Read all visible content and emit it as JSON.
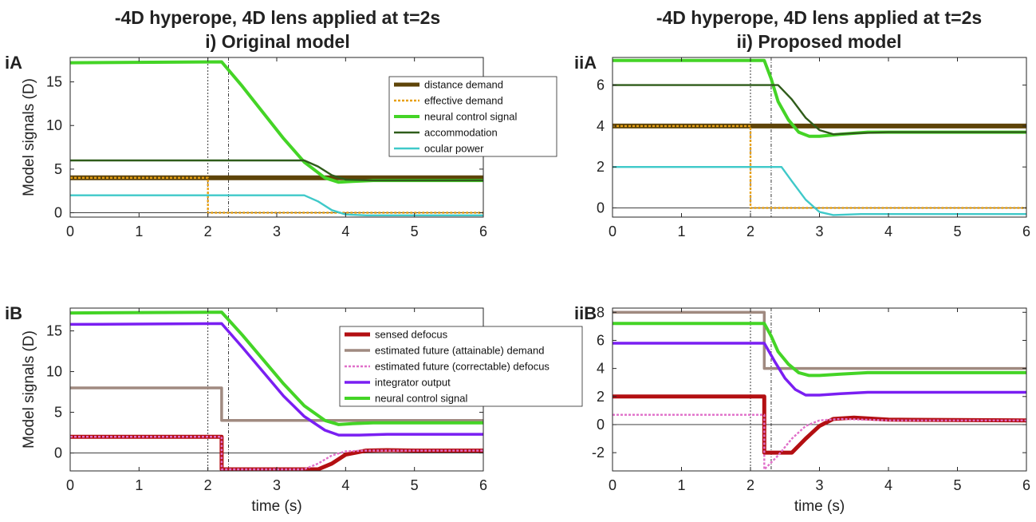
{
  "titles": {
    "left_line1": "-4D hyperope, 4D lens applied at t=2s",
    "left_line2": "i) Original model",
    "right_line1": "-4D hyperope, 4D lens applied at t=2s",
    "right_line2": "ii) Proposed model"
  },
  "chart_data": [
    {
      "id": "iA",
      "type": "line",
      "panel_label": "iA",
      "xlabel": "",
      "ylabel": "Model signals (D)",
      "xlim": [
        0,
        6
      ],
      "ylim": [
        -0.5,
        17.8
      ],
      "xticks": [
        0,
        1,
        2,
        3,
        4,
        5,
        6
      ],
      "yticks": [
        0,
        5,
        10,
        15
      ],
      "vlines": [
        2,
        2.3
      ],
      "legend_position": "top-right",
      "series": [
        {
          "name": "distance demand",
          "color": "#5e4408",
          "width": 6,
          "dash": "",
          "x": [
            0,
            6
          ],
          "y": [
            4,
            4
          ]
        },
        {
          "name": "effective demand",
          "color": "#e8a013",
          "width": 2.4,
          "dash": "3,2",
          "x": [
            0,
            2,
            2,
            6
          ],
          "y": [
            4,
            4,
            0,
            0
          ]
        },
        {
          "name": "neural control signal",
          "color": "#44d426",
          "width": 4,
          "dash": "",
          "x": [
            0,
            2.2,
            2.5,
            2.8,
            3.1,
            3.4,
            3.7,
            3.9,
            4.1,
            4.4,
            5,
            6
          ],
          "y": [
            17.2,
            17.3,
            14.5,
            11.5,
            8.5,
            5.8,
            4.0,
            3.5,
            3.6,
            3.7,
            3.7,
            3.7
          ]
        },
        {
          "name": "accommodation",
          "color": "#2f5c1a",
          "width": 2.4,
          "dash": "",
          "x": [
            0,
            3.4,
            3.6,
            3.8,
            4.0,
            4.4,
            5,
            6
          ],
          "y": [
            6,
            6,
            5.3,
            4.3,
            3.8,
            3.7,
            3.7,
            3.7
          ]
        },
        {
          "name": "ocular power",
          "color": "#3fc9c9",
          "width": 2.4,
          "dash": "",
          "x": [
            0,
            3.4,
            3.6,
            3.8,
            4.0,
            4.3,
            5,
            6
          ],
          "y": [
            2,
            2,
            1.3,
            0.3,
            -0.2,
            -0.3,
            -0.3,
            -0.3
          ]
        }
      ]
    },
    {
      "id": "iiA",
      "type": "line",
      "panel_label": "iiA",
      "xlabel": "",
      "ylabel": "",
      "xlim": [
        0,
        6
      ],
      "ylim": [
        -0.45,
        7.35
      ],
      "xticks": [
        0,
        1,
        2,
        3,
        4,
        5,
        6
      ],
      "yticks": [
        0,
        2,
        4,
        6
      ],
      "vlines": [
        2,
        2.3
      ],
      "legend_position": "none",
      "series": [
        {
          "name": "distance demand",
          "color": "#5e4408",
          "width": 6,
          "dash": "",
          "x": [
            0,
            6
          ],
          "y": [
            4,
            4
          ]
        },
        {
          "name": "effective demand",
          "color": "#e8a013",
          "width": 2.4,
          "dash": "3,2",
          "x": [
            0,
            2,
            2,
            6
          ],
          "y": [
            4,
            4,
            0,
            0
          ]
        },
        {
          "name": "neural control signal",
          "color": "#44d426",
          "width": 4,
          "dash": "",
          "x": [
            0,
            2.2,
            2.3,
            2.4,
            2.55,
            2.7,
            2.85,
            3.0,
            3.3,
            3.7,
            4,
            6
          ],
          "y": [
            7.2,
            7.2,
            6.3,
            5.2,
            4.3,
            3.7,
            3.5,
            3.5,
            3.6,
            3.7,
            3.7,
            3.7
          ]
        },
        {
          "name": "accommodation",
          "color": "#2f5c1a",
          "width": 2.4,
          "dash": "",
          "x": [
            0,
            2.4,
            2.6,
            2.8,
            3.0,
            3.2,
            3.5,
            4,
            6
          ],
          "y": [
            6,
            6,
            5.3,
            4.4,
            3.8,
            3.6,
            3.65,
            3.7,
            3.7
          ]
        },
        {
          "name": "ocular power",
          "color": "#3fc9c9",
          "width": 2.4,
          "dash": "",
          "x": [
            0,
            2.45,
            2.6,
            2.8,
            3.0,
            3.2,
            3.6,
            4,
            6
          ],
          "y": [
            2,
            2,
            1.3,
            0.4,
            -0.2,
            -0.35,
            -0.3,
            -0.3,
            -0.3
          ]
        }
      ]
    },
    {
      "id": "iB",
      "type": "line",
      "panel_label": "iB",
      "xlabel": "time (s)",
      "ylabel": "Model signals (D)",
      "xlim": [
        0,
        6
      ],
      "ylim": [
        -2.2,
        17.8
      ],
      "xticks": [
        0,
        1,
        2,
        3,
        4,
        5,
        6
      ],
      "yticks": [
        0,
        5,
        10,
        15
      ],
      "vlines": [
        2,
        2.3
      ],
      "legend_position": "top-right",
      "series": [
        {
          "name": "sensed defocus",
          "color": "#b30f12",
          "width": 5,
          "dash": "",
          "x": [
            0,
            2.2,
            2.2,
            3.6,
            3.8,
            4.0,
            4.3,
            4.6,
            5,
            6
          ],
          "y": [
            2,
            2,
            -2,
            -2,
            -1.3,
            -0.2,
            0.3,
            0.35,
            0.3,
            0.3
          ]
        },
        {
          "name": "estimated future (attainable) demand",
          "color": "#a08a80",
          "width": 3.5,
          "dash": "",
          "x": [
            0,
            2.2,
            2.2,
            6
          ],
          "y": [
            8,
            8,
            4,
            4
          ]
        },
        {
          "name": "estimated future (correctable) defocus",
          "color": "#e06fc9",
          "width": 2.4,
          "dash": "3,2",
          "x": [
            0,
            2.2,
            2.2,
            3.4,
            3.6,
            3.8,
            4.0,
            4.3,
            5,
            6
          ],
          "y": [
            2,
            2,
            -2,
            -2,
            -1.3,
            -0.3,
            0.2,
            0.3,
            0.3,
            0.3
          ]
        },
        {
          "name": "integrator output",
          "color": "#7a1ff2",
          "width": 3.5,
          "dash": "",
          "x": [
            0,
            2.2,
            2.5,
            2.8,
            3.1,
            3.4,
            3.7,
            3.9,
            4.2,
            4.6,
            5,
            6
          ],
          "y": [
            15.8,
            15.9,
            13.0,
            10.0,
            7.0,
            4.5,
            2.8,
            2.2,
            2.2,
            2.3,
            2.3,
            2.3
          ]
        },
        {
          "name": "neural control signal",
          "color": "#44d426",
          "width": 4,
          "dash": "",
          "x": [
            0,
            2.2,
            2.5,
            2.8,
            3.1,
            3.4,
            3.7,
            3.9,
            4.1,
            4.4,
            5,
            6
          ],
          "y": [
            17.2,
            17.3,
            14.5,
            11.5,
            8.5,
            5.8,
            4.0,
            3.5,
            3.6,
            3.7,
            3.7,
            3.7
          ]
        }
      ]
    },
    {
      "id": "iiB",
      "type": "line",
      "panel_label": "iiB",
      "xlabel": "time (s)",
      "ylabel": "",
      "xlim": [
        0,
        6
      ],
      "ylim": [
        -3.3,
        8.3
      ],
      "xticks": [
        0,
        1,
        2,
        3,
        4,
        5,
        6
      ],
      "yticks": [
        -2,
        0,
        2,
        4,
        6,
        8
      ],
      "vlines": [
        2,
        2.3
      ],
      "legend_position": "none",
      "series": [
        {
          "name": "sensed defocus",
          "color": "#b30f12",
          "width": 5,
          "dash": "",
          "x": [
            0,
            2.2,
            2.2,
            2.6,
            2.8,
            3.0,
            3.2,
            3.5,
            4,
            6
          ],
          "y": [
            2,
            2,
            -2,
            -2,
            -1.0,
            -0.1,
            0.4,
            0.5,
            0.35,
            0.3
          ]
        },
        {
          "name": "estimated future (attainable) demand",
          "color": "#a08a80",
          "width": 3.5,
          "dash": "",
          "x": [
            0,
            2.2,
            2.2,
            6
          ],
          "y": [
            8,
            8,
            4,
            4
          ]
        },
        {
          "name": "estimated future (correctable) defocus",
          "color": "#e06fc9",
          "width": 2.4,
          "dash": "3,2",
          "x": [
            0,
            2.2,
            2.2,
            2.4,
            2.6,
            2.8,
            3.0,
            3.3,
            4,
            6
          ],
          "y": [
            0.7,
            0.7,
            -3.2,
            -2.2,
            -1.0,
            -0.1,
            0.3,
            0.4,
            0.3,
            0.3
          ]
        },
        {
          "name": "integrator output",
          "color": "#7a1ff2",
          "width": 3.5,
          "dash": "",
          "x": [
            0,
            2.2,
            2.35,
            2.5,
            2.65,
            2.8,
            3.0,
            3.3,
            3.7,
            6
          ],
          "y": [
            5.8,
            5.8,
            4.5,
            3.3,
            2.5,
            2.1,
            2.1,
            2.2,
            2.3,
            2.3
          ]
        },
        {
          "name": "neural control signal",
          "color": "#44d426",
          "width": 4,
          "dash": "",
          "x": [
            0,
            2.2,
            2.3,
            2.4,
            2.55,
            2.7,
            2.85,
            3.0,
            3.3,
            3.7,
            4,
            6
          ],
          "y": [
            7.2,
            7.2,
            6.3,
            5.2,
            4.3,
            3.7,
            3.5,
            3.5,
            3.6,
            3.7,
            3.7,
            3.7
          ]
        }
      ]
    }
  ],
  "legends": {
    "top": [
      "distance demand",
      "effective demand",
      "neural control signal",
      "accommodation",
      "ocular power"
    ],
    "bottom": [
      "sensed defocus",
      "estimated future (attainable) demand",
      "estimated future (correctable) defocus",
      "integrator output",
      "neural control signal"
    ]
  },
  "colors": {
    "axis": "#262626",
    "zero_line": "#262626",
    "vline": "#262626"
  }
}
